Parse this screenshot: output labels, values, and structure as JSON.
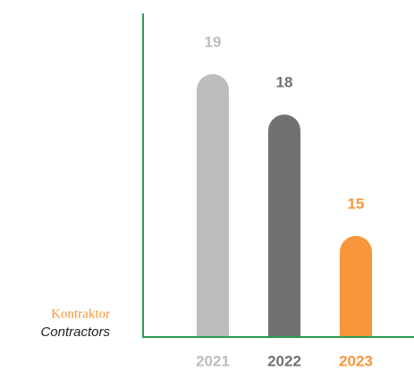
{
  "chart_data": {
    "type": "bar",
    "label": [
      "Kontraktor",
      "Contractors"
    ],
    "categories": [
      "2021",
      "2022",
      "2023"
    ],
    "values": [
      19,
      18,
      15
    ],
    "colors": [
      "#bdbdbd",
      "#717173",
      "#f7963a"
    ],
    "axis_color": "#2e9a4e",
    "ylim": [
      12.5,
      20.5
    ]
  }
}
